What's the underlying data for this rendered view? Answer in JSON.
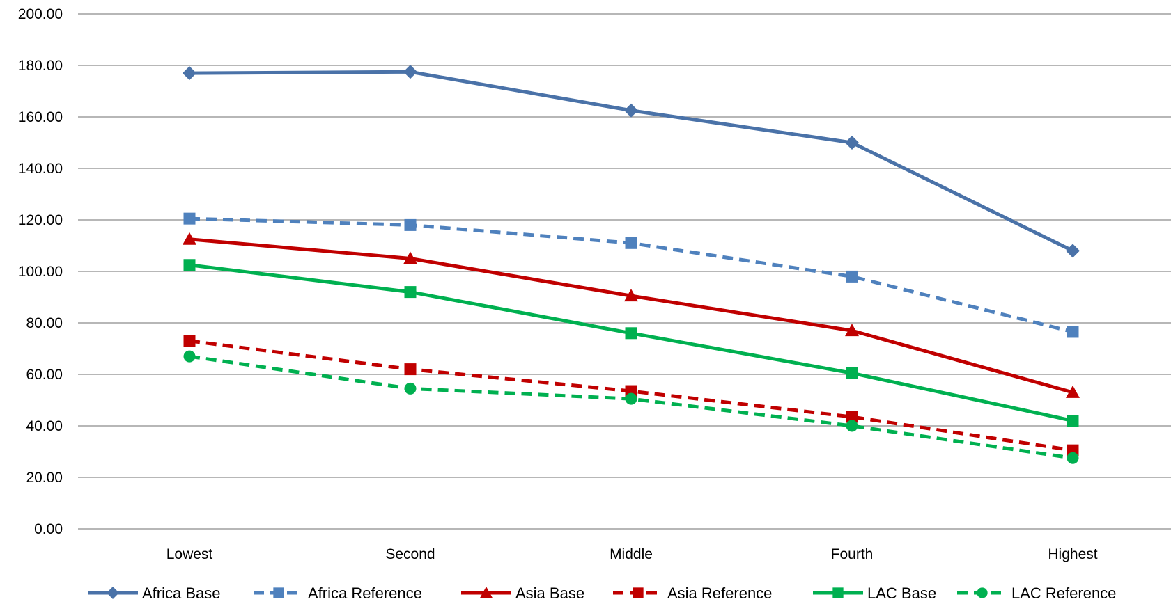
{
  "chart_data": {
    "type": "line",
    "title": "",
    "xlabel": "",
    "ylabel": "",
    "categories": [
      "Lowest",
      "Second",
      "Middle",
      "Fourth",
      "Highest"
    ],
    "ylim": [
      0,
      200
    ],
    "y_ticks": [
      0,
      20,
      40,
      60,
      80,
      100,
      120,
      140,
      160,
      180,
      200
    ],
    "y_tick_labels": [
      "0.00",
      "20.00",
      "40.00",
      "60.00",
      "80.00",
      "100.00",
      "120.00",
      "140.00",
      "160.00",
      "180.00",
      "200.00"
    ],
    "grid": true,
    "legend_position": "bottom",
    "series": [
      {
        "name": "Africa Base",
        "values": [
          177.0,
          177.5,
          162.5,
          150.0,
          108.0
        ],
        "color": "#4A72A8",
        "dash": "solid",
        "marker": "diamond"
      },
      {
        "name": "Africa Reference",
        "values": [
          120.5,
          118.0,
          111.0,
          98.0,
          76.5
        ],
        "color": "#4F81BD",
        "dash": "dashed",
        "marker": "square"
      },
      {
        "name": "Asia Base",
        "values": [
          112.5,
          105.0,
          90.5,
          77.0,
          53.0
        ],
        "color": "#C00000",
        "dash": "solid",
        "marker": "triangle"
      },
      {
        "name": "Asia Reference",
        "values": [
          73.0,
          62.0,
          53.5,
          43.5,
          30.5
        ],
        "color": "#C00000",
        "dash": "dashed",
        "marker": "square"
      },
      {
        "name": "LAC Base",
        "values": [
          102.5,
          92.0,
          76.0,
          60.5,
          42.0
        ],
        "color": "#00B050",
        "dash": "solid",
        "marker": "square"
      },
      {
        "name": "LAC Reference",
        "values": [
          67.0,
          54.5,
          50.5,
          40.0,
          27.5
        ],
        "color": "#00B050",
        "dash": "dashed",
        "marker": "circle"
      }
    ]
  }
}
